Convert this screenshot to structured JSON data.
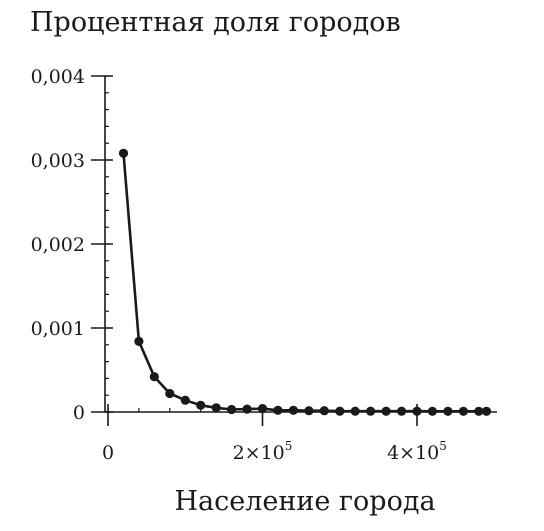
{
  "chart_data": {
    "type": "line",
    "title": "",
    "ylabel": "Процентная доля городов",
    "xlabel": "Население города",
    "ylim": [
      0,
      0.004
    ],
    "xlim": [
      0,
      490000
    ],
    "y_ticks": [
      {
        "value": 0,
        "label": "0"
      },
      {
        "value": 0.001,
        "label": "0,001"
      },
      {
        "value": 0.002,
        "label": "0,002"
      },
      {
        "value": 0.003,
        "label": "0,003"
      },
      {
        "value": 0.004,
        "label": "0,004"
      }
    ],
    "x_ticks": [
      {
        "value": 0,
        "base": "0",
        "exp": ""
      },
      {
        "value": 200000,
        "base": "2×10",
        "exp": "5"
      },
      {
        "value": 400000,
        "base": "4×10",
        "exp": "5"
      }
    ],
    "y_minor_step": 0.0002,
    "x_minor_step": 40000,
    "grid": false,
    "legend": "none",
    "line_color": "#1a1a1a",
    "series": [
      {
        "x": [
          20000,
          40000,
          60000,
          80000,
          100000,
          120000,
          140000,
          160000,
          180000,
          200000,
          220000,
          240000,
          260000,
          280000,
          300000,
          320000,
          340000,
          360000,
          380000,
          400000,
          420000,
          440000,
          460000,
          480000,
          490000
        ],
        "y": [
          0.00308,
          0.00084,
          0.00042,
          0.00022,
          0.00014,
          8e-05,
          5e-05,
          3e-05,
          3.5e-05,
          4e-05,
          2e-05,
          2e-05,
          1.5e-05,
          1.5e-05,
          1e-05,
          1e-05,
          1e-05,
          1e-05,
          1e-05,
          1e-05,
          8e-06,
          8e-06,
          8e-06,
          8e-06,
          8e-06
        ]
      }
    ]
  }
}
